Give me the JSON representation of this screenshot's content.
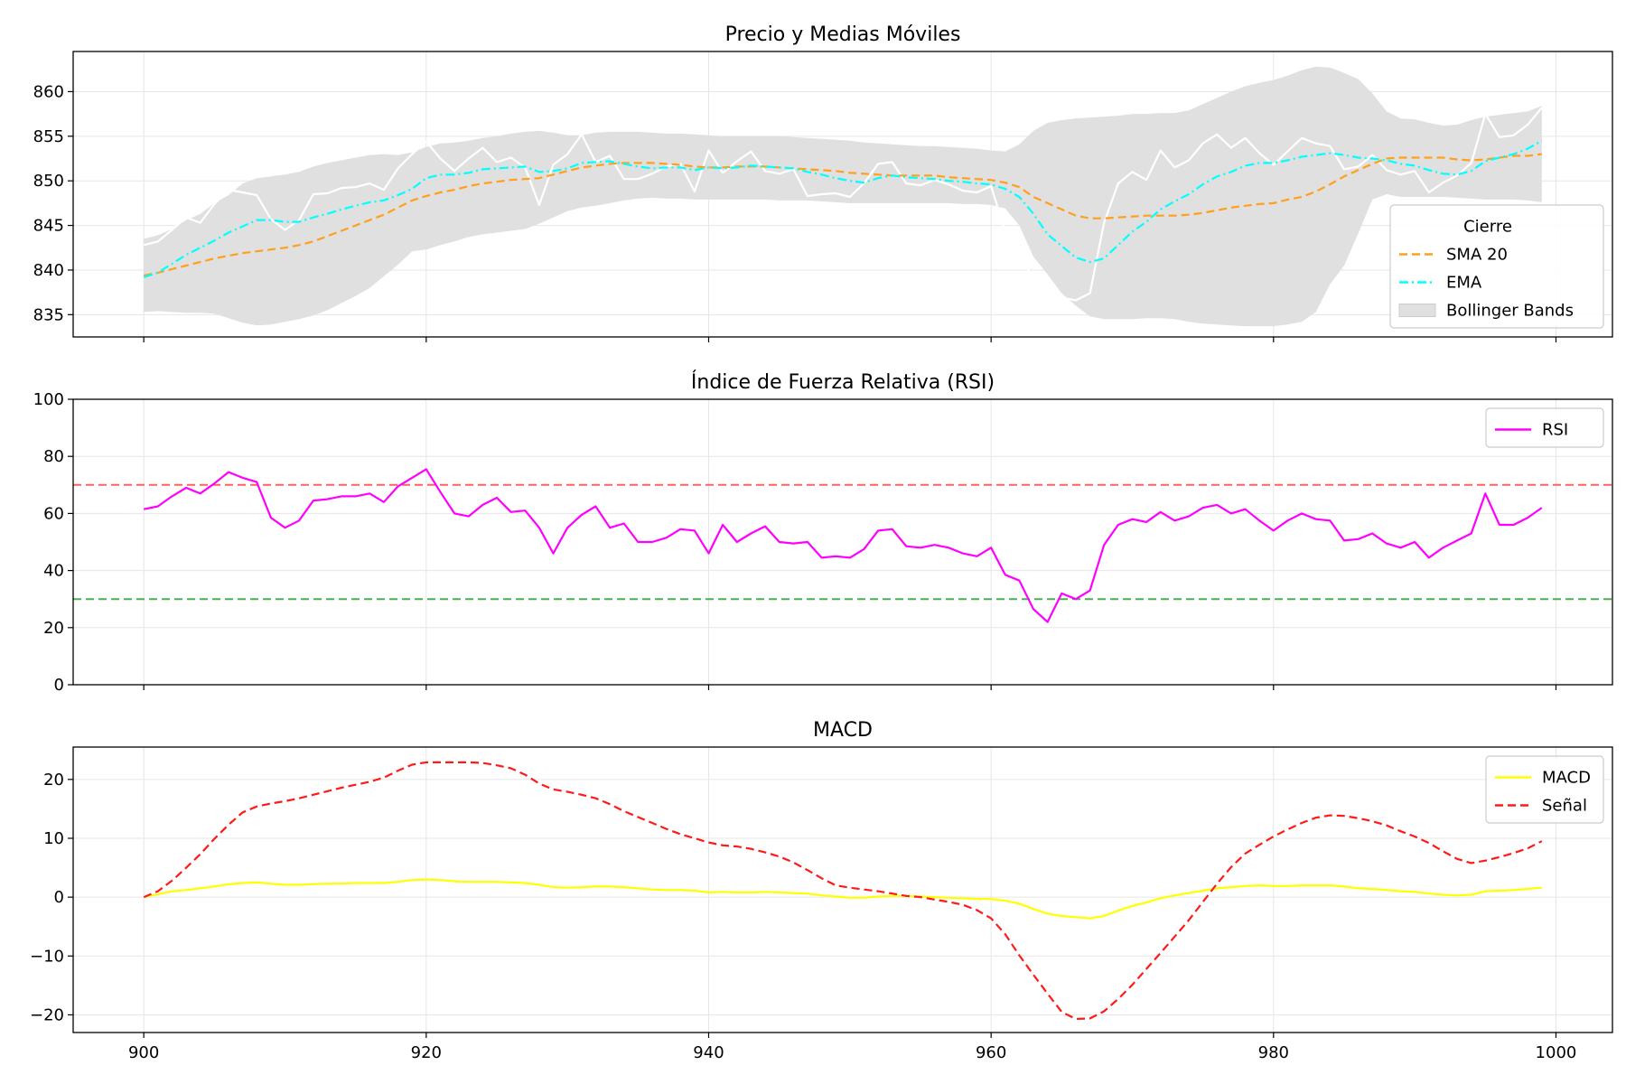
{
  "chart_data": [
    {
      "type": "line",
      "title": "Precio y Medias Móviles",
      "xlim": [
        895,
        1004
      ],
      "ylim": [
        832.5,
        864.5
      ],
      "xticks": [
        900,
        920,
        940,
        960,
        980,
        1000
      ],
      "yticks": [
        835,
        840,
        845,
        850,
        855,
        860
      ],
      "grid": true,
      "legend_position": "lower-right",
      "legend_title": "Cierre",
      "x": [
        900,
        901,
        902,
        903,
        904,
        905,
        906,
        907,
        908,
        909,
        910,
        911,
        912,
        913,
        914,
        915,
        916,
        917,
        918,
        919,
        920,
        921,
        922,
        923,
        924,
        925,
        926,
        927,
        928,
        929,
        930,
        931,
        932,
        933,
        934,
        935,
        936,
        937,
        938,
        939,
        940,
        941,
        942,
        943,
        944,
        945,
        946,
        947,
        948,
        949,
        950,
        951,
        952,
        953,
        954,
        955,
        956,
        957,
        958,
        959,
        960,
        961,
        962,
        963,
        964,
        965,
        966,
        967,
        968,
        969,
        970,
        971,
        972,
        973,
        974,
        975,
        976,
        977,
        978,
        979,
        980,
        981,
        982,
        983,
        984,
        985,
        986,
        987,
        988,
        989,
        990,
        991,
        992,
        993,
        994,
        995,
        996,
        997,
        998,
        999
      ],
      "series": [
        {
          "name": "Cierre",
          "color": "#ffffff",
          "style": "solid",
          "values": [
            842.8,
            843.2,
            844.5,
            845.9,
            845.3,
            847.4,
            849.0,
            848.7,
            848.4,
            845.7,
            844.5,
            845.6,
            848.5,
            848.6,
            849.2,
            849.3,
            849.7,
            849.0,
            851.4,
            853.0,
            854.4,
            852.5,
            851.1,
            852.5,
            853.7,
            852.1,
            852.6,
            851.5,
            847.3,
            851.8,
            853.0,
            855.2,
            852.1,
            852.8,
            850.2,
            850.2,
            850.8,
            851.6,
            851.9,
            848.8,
            853.4,
            850.9,
            852.2,
            853.3,
            851.1,
            850.8,
            851.3,
            848.3,
            848.5,
            848.6,
            848.2,
            849.7,
            851.9,
            852.1,
            849.7,
            849.5,
            850.1,
            849.6,
            848.9,
            848.7,
            849.4,
            844.3,
            843.3,
            838.2,
            835.3,
            836.9,
            836.6,
            837.4,
            845.3,
            849.7,
            851.0,
            850.1,
            853.4,
            851.5,
            852.3,
            854.2,
            855.2,
            853.7,
            854.8,
            853.1,
            851.8,
            853.3,
            854.8,
            854.2,
            853.9,
            851.3,
            851.6,
            852.9,
            851.2,
            850.7,
            851.1,
            848.7,
            849.8,
            850.6,
            852.0,
            857.5,
            854.9,
            855.1,
            856.3,
            858.2
          ]
        },
        {
          "name": "SMA 20",
          "color": "#ff9f1c",
          "style": "dashed",
          "values": [
            839.4,
            839.7,
            840.1,
            840.5,
            840.9,
            841.3,
            841.6,
            841.9,
            842.1,
            842.3,
            842.5,
            842.8,
            843.2,
            843.8,
            844.4,
            845.0,
            845.6,
            846.2,
            847.0,
            847.8,
            848.3,
            848.7,
            849.0,
            849.4,
            849.7,
            849.9,
            850.1,
            850.2,
            850.3,
            850.7,
            851.1,
            851.5,
            851.7,
            851.9,
            852.0,
            852.0,
            852.0,
            851.9,
            851.8,
            851.6,
            851.5,
            851.5,
            851.6,
            851.6,
            851.6,
            851.5,
            851.4,
            851.3,
            851.2,
            851.1,
            850.9,
            850.8,
            850.7,
            850.6,
            850.6,
            850.6,
            850.6,
            850.4,
            850.3,
            850.2,
            850.1,
            849.8,
            849.3,
            848.2,
            847.5,
            846.8,
            846.1,
            845.8,
            845.8,
            845.9,
            846.0,
            846.1,
            846.1,
            846.1,
            846.2,
            846.4,
            846.7,
            847.0,
            847.2,
            847.4,
            847.5,
            847.9,
            848.2,
            848.8,
            849.6,
            850.5,
            851.2,
            851.9,
            852.5,
            852.6,
            852.6,
            852.6,
            852.6,
            852.4,
            852.3,
            852.4,
            852.6,
            852.8,
            852.8,
            853.0
          ]
        },
        {
          "name": "EMA",
          "color": "#00ffff",
          "style": "dashdot",
          "values": [
            839.2,
            839.7,
            840.7,
            841.7,
            842.5,
            843.3,
            844.2,
            844.9,
            845.6,
            845.6,
            845.4,
            845.4,
            845.9,
            846.3,
            846.8,
            847.2,
            847.6,
            847.8,
            848.4,
            849.1,
            850.3,
            850.7,
            850.7,
            850.9,
            851.3,
            851.4,
            851.5,
            851.6,
            851.0,
            851.1,
            851.4,
            852.0,
            852.1,
            852.2,
            851.9,
            851.6,
            851.4,
            851.5,
            851.5,
            851.2,
            851.5,
            851.4,
            851.5,
            851.7,
            851.6,
            851.5,
            851.4,
            851.0,
            850.7,
            850.3,
            850.0,
            849.8,
            850.3,
            850.6,
            850.4,
            850.3,
            850.2,
            850.0,
            849.9,
            849.7,
            849.6,
            849.1,
            848.2,
            846.3,
            844.0,
            842.7,
            841.4,
            840.9,
            841.3,
            842.8,
            844.3,
            845.4,
            846.8,
            847.7,
            848.5,
            849.6,
            850.5,
            851.0,
            851.7,
            852.0,
            852.0,
            852.3,
            852.7,
            852.9,
            853.1,
            852.9,
            852.6,
            852.5,
            852.3,
            851.9,
            851.7,
            851.2,
            850.8,
            850.7,
            851.1,
            852.2,
            852.6,
            853.0,
            853.6,
            854.5
          ]
        },
        {
          "name": "Bollinger Bands",
          "color": "#e0e0e0",
          "style": "fill",
          "upper": [
            843.5,
            843.9,
            844.6,
            845.6,
            846.3,
            847.5,
            848.4,
            849.7,
            850.3,
            850.5,
            850.7,
            851.0,
            851.6,
            852.0,
            852.3,
            852.6,
            852.9,
            853.0,
            852.9,
            853.2,
            853.8,
            854.2,
            854.3,
            854.5,
            854.8,
            855.0,
            855.3,
            855.5,
            855.6,
            855.4,
            855.1,
            855.1,
            855.4,
            855.5,
            855.5,
            855.5,
            855.4,
            855.3,
            855.3,
            855.2,
            855.1,
            855.0,
            855.0,
            855.0,
            855.0,
            855.0,
            854.9,
            854.8,
            854.7,
            854.6,
            854.5,
            854.3,
            854.2,
            854.1,
            854.0,
            853.9,
            853.9,
            853.8,
            853.7,
            853.6,
            853.4,
            853.3,
            854.1,
            855.6,
            856.5,
            856.8,
            857.0,
            857.1,
            857.2,
            857.3,
            857.5,
            857.5,
            857.6,
            857.6,
            857.9,
            858.6,
            859.3,
            860.0,
            860.6,
            861.0,
            861.3,
            861.8,
            862.4,
            862.8,
            862.7,
            862.1,
            861.4,
            859.8,
            857.8,
            857.0,
            856.9,
            856.5,
            856.2,
            856.3,
            856.8,
            857.2,
            857.4,
            857.6,
            857.8,
            858.4
          ],
          "lower": [
            835.3,
            835.4,
            835.3,
            835.2,
            835.2,
            835.1,
            834.6,
            834.1,
            833.8,
            833.9,
            834.2,
            834.5,
            834.9,
            835.5,
            836.3,
            837.1,
            838.0,
            839.3,
            840.6,
            842.1,
            842.3,
            842.8,
            843.2,
            843.7,
            844.0,
            844.2,
            844.4,
            844.6,
            845.2,
            845.9,
            846.6,
            847.0,
            847.2,
            847.5,
            847.8,
            848.0,
            848.1,
            848.0,
            848.0,
            847.9,
            847.9,
            847.9,
            847.9,
            847.9,
            847.9,
            847.8,
            847.8,
            847.8,
            847.7,
            847.6,
            847.5,
            847.5,
            847.5,
            847.5,
            847.5,
            847.5,
            847.5,
            847.5,
            847.4,
            847.4,
            847.3,
            846.9,
            845.0,
            841.5,
            839.5,
            837.4,
            836.0,
            834.8,
            834.5,
            834.5,
            834.5,
            834.6,
            834.6,
            834.5,
            834.2,
            834.0,
            833.9,
            833.8,
            833.7,
            833.7,
            833.7,
            833.9,
            834.2,
            835.3,
            838.4,
            840.5,
            844.1,
            847.9,
            848.5,
            848.2,
            848.2,
            848.2,
            848.2,
            848.1,
            848.0,
            847.9,
            847.9,
            847.9,
            847.8,
            847.6
          ]
        }
      ]
    },
    {
      "type": "line",
      "title": "Índice de Fuerza Relativa (RSI)",
      "xlim": [
        895,
        1004
      ],
      "ylim": [
        0,
        100
      ],
      "xticks": [
        900,
        920,
        940,
        960,
        980,
        1000
      ],
      "yticks": [
        0,
        20,
        40,
        60,
        80,
        100
      ],
      "grid": true,
      "legend_position": "top-right",
      "hlines": [
        {
          "value": 70,
          "color": "#ff6060",
          "style": "dashed"
        },
        {
          "value": 30,
          "color": "#4caf50",
          "style": "dashed"
        }
      ],
      "series": [
        {
          "name": "RSI",
          "color": "#ff00ff",
          "style": "solid",
          "values": [
            61.5,
            62.5,
            66,
            69,
            67,
            70.5,
            74.5,
            72.5,
            71,
            58.5,
            55,
            57.5,
            64.5,
            65,
            66,
            66,
            67,
            64,
            69.5,
            72.5,
            75.5,
            67.5,
            60,
            59,
            63,
            65.5,
            60.5,
            61,
            55,
            46,
            55,
            59.5,
            62.5,
            55,
            56.5,
            50,
            50,
            51.5,
            54.5,
            54,
            46,
            56,
            50,
            53,
            55.5,
            50,
            49.5,
            50,
            44.5,
            45,
            44.5,
            47.5,
            54,
            54.5,
            48.5,
            48,
            49,
            48,
            46,
            45,
            48,
            38.5,
            36.5,
            26.5,
            22,
            32,
            30,
            33,
            49,
            56,
            58,
            57,
            60.5,
            57.5,
            59,
            62,
            63,
            60,
            61.5,
            57.5,
            54,
            57.5,
            60,
            58,
            57.5,
            50.5,
            51,
            53,
            49.5,
            48,
            50,
            44.5,
            48,
            50.5,
            53,
            67,
            56,
            56,
            58.5,
            62
          ]
        }
      ]
    },
    {
      "type": "line",
      "title": "MACD",
      "xlim": [
        895,
        1004
      ],
      "ylim": [
        -23,
        25.5
      ],
      "xticks": [
        900,
        920,
        940,
        960,
        980,
        1000
      ],
      "yticks": [
        -20,
        -10,
        0,
        10,
        20
      ],
      "grid": true,
      "legend_position": "top-right",
      "series": [
        {
          "name": "MACD",
          "color": "#ffff00",
          "style": "solid",
          "values": [
            0,
            0.5,
            1,
            1.2,
            1.5,
            1.8,
            2.2,
            2.4,
            2.5,
            2.3,
            2.1,
            2.1,
            2.2,
            2.3,
            2.3,
            2.4,
            2.4,
            2.4,
            2.6,
            2.9,
            3,
            2.9,
            2.7,
            2.6,
            2.6,
            2.6,
            2.5,
            2.4,
            2.1,
            1.7,
            1.6,
            1.7,
            1.8,
            1.8,
            1.7,
            1.5,
            1.3,
            1.2,
            1.2,
            1.1,
            0.8,
            0.9,
            0.8,
            0.8,
            0.9,
            0.8,
            0.7,
            0.6,
            0.3,
            0.1,
            -0.1,
            -0.1,
            0.1,
            0.2,
            0.2,
            0.1,
            0,
            -0.1,
            -0.2,
            -0.3,
            -0.3,
            -0.6,
            -1.1,
            -2,
            -2.8,
            -3.2,
            -3.4,
            -3.6,
            -3.2,
            -2.3,
            -1.5,
            -0.9,
            -0.2,
            0.3,
            0.7,
            1.1,
            1.5,
            1.7,
            1.9,
            2,
            1.9,
            1.9,
            2,
            2,
            2,
            1.8,
            1.5,
            1.4,
            1.2,
            1,
            0.9,
            0.6,
            0.4,
            0.3,
            0.4,
            1,
            1.1,
            1.2,
            1.4,
            1.6
          ]
        },
        {
          "name": "Señal",
          "color": "#ff1a1a",
          "style": "dashed",
          "values": [
            0,
            1,
            2.8,
            5,
            7.3,
            9.9,
            12.3,
            14.4,
            15.4,
            15.9,
            16.3,
            16.8,
            17.4,
            18,
            18.6,
            19.1,
            19.6,
            20.3,
            21.5,
            22.5,
            22.9,
            22.9,
            22.9,
            22.9,
            22.8,
            22.4,
            21.9,
            20.8,
            19.3,
            18.3,
            17.9,
            17.4,
            16.8,
            15.8,
            14.6,
            13.6,
            12.6,
            11.6,
            10.7,
            10,
            9.3,
            8.8,
            8.6,
            8.2,
            7.6,
            6.9,
            5.9,
            4.6,
            3.2,
            2,
            1.6,
            1.3,
            1,
            0.6,
            0.2,
            0,
            -0.4,
            -0.8,
            -1.3,
            -2.2,
            -3.6,
            -6.3,
            -9.9,
            -13.2,
            -16.4,
            -19.5,
            -20.7,
            -20.6,
            -19.4,
            -17.3,
            -14.9,
            -12.2,
            -9.5,
            -6.7,
            -3.9,
            -0.8,
            2.3,
            5.1,
            7.4,
            8.9,
            10.3,
            11.5,
            12.6,
            13.5,
            13.9,
            13.8,
            13.4,
            12.9,
            12.2,
            11.2,
            10.3,
            9.2,
            7.8,
            6.5,
            5.8,
            6.2,
            6.8,
            7.5,
            8.3,
            9.5
          ]
        }
      ]
    }
  ]
}
